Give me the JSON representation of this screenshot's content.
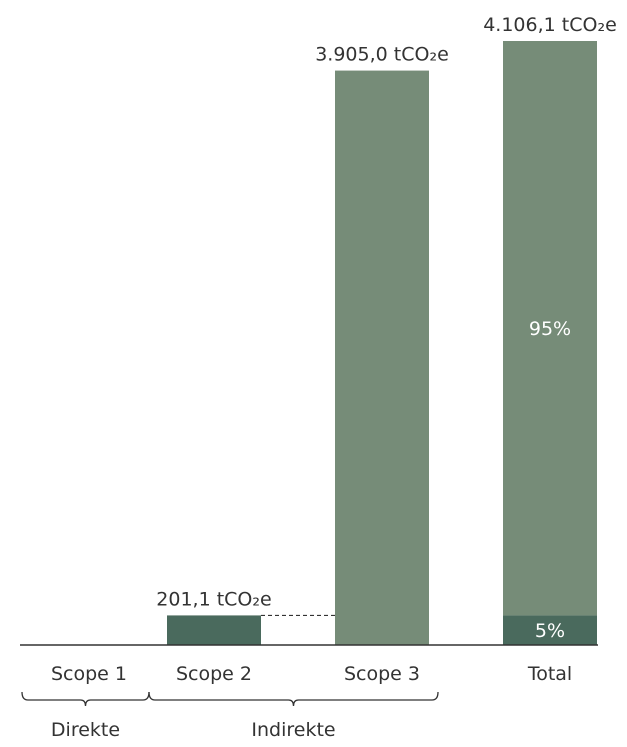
{
  "chart_data": {
    "type": "bar",
    "categories": [
      "Scope 1",
      "Scope 2",
      "Scope 3",
      "Total"
    ],
    "unit": "tCO2e",
    "values": [
      0,
      201.1,
      3905.0,
      4106.1
    ],
    "value_labels": [
      "",
      "201,1 tCO₂e",
      "3.905,0 tCO₂e",
      "4.106,1 tCO₂e"
    ],
    "stacked_total": {
      "category": "Total",
      "segments": [
        {
          "value": 201.1,
          "label": "5%",
          "color": "#4a6a5d"
        },
        {
          "value": 3905.0,
          "label": "95%",
          "color": "#768c78"
        }
      ]
    },
    "groups": [
      {
        "label": "Direkte",
        "categories": [
          "Scope 1"
        ]
      },
      {
        "label": "Indirekte",
        "categories": [
          "Scope 2",
          "Scope 3"
        ]
      }
    ],
    "colors": {
      "scope2": "#4a6a5d",
      "scope3": "#768c78",
      "axis": "#333333",
      "text": "#333333"
    },
    "ylim": [
      0,
      4106.1
    ],
    "legend": "none",
    "grid": false
  }
}
